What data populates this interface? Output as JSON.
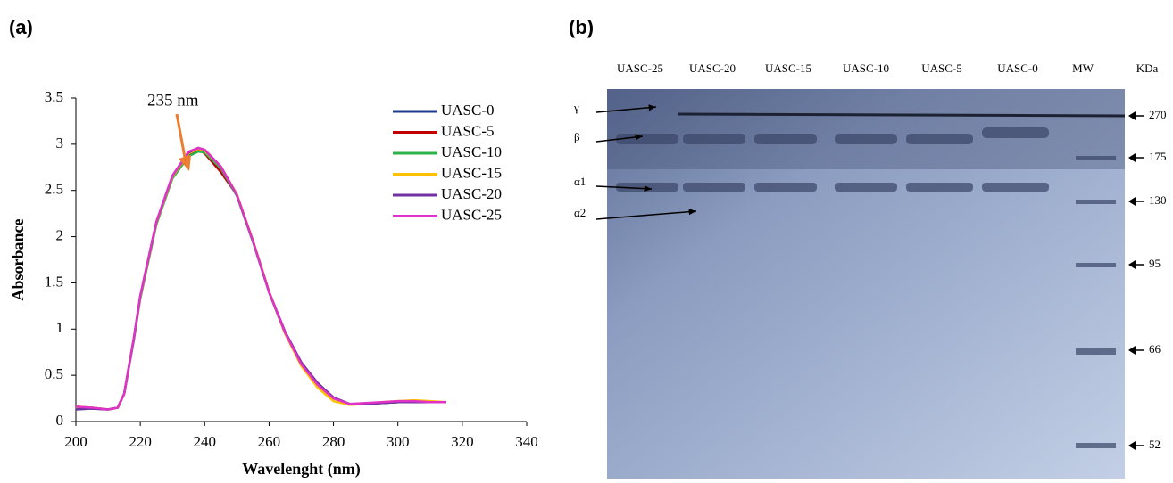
{
  "panel_labels": [
    "(a)",
    "(b)"
  ],
  "chart_data": {
    "type": "line",
    "x_label": "Wavelenght (nm)",
    "y_label": "Absorbance",
    "annotations": [
      "235 nm"
    ],
    "x": [
      200,
      205,
      210,
      213,
      215,
      218,
      220,
      225,
      230,
      235,
      238,
      240,
      245,
      250,
      255,
      260,
      265,
      270,
      275,
      280,
      285,
      290,
      295,
      300,
      305,
      310,
      315
    ],
    "xlim": [
      200,
      340
    ],
    "xticks": [
      200,
      220,
      240,
      260,
      280,
      300,
      320,
      340
    ],
    "ylim": [
      0,
      3.5
    ],
    "yticks": [
      0,
      0.5,
      1,
      1.5,
      2,
      2.5,
      3,
      3.5
    ],
    "grid": false,
    "legend": "upper right",
    "series": [
      {
        "name": "UASC-0",
        "color": "#1f3a8a",
        "values": [
          0.15,
          0.14,
          0.13,
          0.15,
          0.3,
          0.9,
          1.35,
          2.15,
          2.65,
          2.88,
          2.93,
          2.92,
          2.75,
          2.45,
          1.95,
          1.4,
          0.96,
          0.63,
          0.41,
          0.26,
          0.19,
          0.19,
          0.2,
          0.21,
          0.21,
          0.21,
          0.21
        ]
      },
      {
        "name": "UASC-5",
        "color": "#c00000",
        "values": [
          0.16,
          0.15,
          0.13,
          0.15,
          0.3,
          0.9,
          1.35,
          2.15,
          2.65,
          2.9,
          2.94,
          2.9,
          2.7,
          2.45,
          1.95,
          1.4,
          0.95,
          0.62,
          0.4,
          0.25,
          0.19,
          0.19,
          0.2,
          0.21,
          0.21,
          0.21,
          0.21
        ]
      },
      {
        "name": "UASC-10",
        "color": "#2eb34a",
        "values": [
          0.15,
          0.15,
          0.13,
          0.15,
          0.3,
          0.88,
          1.33,
          2.13,
          2.63,
          2.87,
          2.92,
          2.91,
          2.74,
          2.44,
          1.94,
          1.4,
          0.95,
          0.62,
          0.4,
          0.25,
          0.19,
          0.19,
          0.2,
          0.21,
          0.21,
          0.21,
          0.21
        ]
      },
      {
        "name": "UASC-15",
        "color": "#ffc000",
        "values": [
          0.16,
          0.15,
          0.13,
          0.15,
          0.3,
          0.9,
          1.35,
          2.15,
          2.65,
          2.9,
          2.95,
          2.93,
          2.76,
          2.46,
          1.96,
          1.41,
          0.95,
          0.6,
          0.37,
          0.22,
          0.18,
          0.19,
          0.21,
          0.22,
          0.23,
          0.22,
          0.21
        ]
      },
      {
        "name": "UASC-20",
        "color": "#7030a0",
        "values": [
          0.13,
          0.14,
          0.13,
          0.15,
          0.3,
          0.9,
          1.36,
          2.16,
          2.66,
          2.91,
          2.96,
          2.94,
          2.76,
          2.45,
          1.95,
          1.4,
          0.97,
          0.64,
          0.42,
          0.26,
          0.19,
          0.19,
          0.2,
          0.21,
          0.21,
          0.21,
          0.21
        ]
      },
      {
        "name": "UASC-25",
        "color": "#e032c8",
        "values": [
          0.16,
          0.15,
          0.13,
          0.15,
          0.3,
          0.9,
          1.36,
          2.16,
          2.66,
          2.92,
          2.96,
          2.94,
          2.76,
          2.45,
          1.95,
          1.4,
          0.96,
          0.62,
          0.4,
          0.25,
          0.19,
          0.2,
          0.21,
          0.22,
          0.22,
          0.21,
          0.21
        ]
      }
    ]
  },
  "gel": {
    "lanes": [
      "UASC-25",
      "UASC-20",
      "UASC-15",
      "UASC-10",
      "UASC-5",
      "UASC-0",
      "MW",
      "KDa"
    ],
    "bands": [
      "γ",
      "β",
      "α1",
      "α2"
    ],
    "markers": [
      "270",
      "175",
      "130",
      "95",
      "66",
      "52"
    ]
  }
}
